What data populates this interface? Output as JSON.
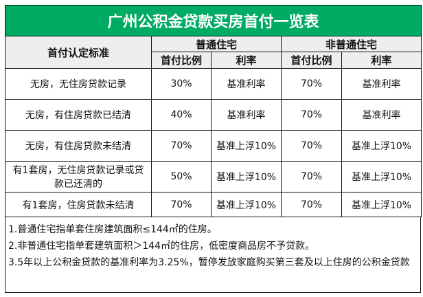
{
  "title": "广州公积金贷款买房首付一览表",
  "header": {
    "criteria": "首付认定标准",
    "ordinary": "普通住宅",
    "non_ordinary": "非普通住宅",
    "ratio": "首付比例",
    "rate": "利率"
  },
  "rows": [
    {
      "criteria": "无房，无住房贷款记录",
      "o_ratio": "30%",
      "o_rate": "基准利率",
      "n_ratio": "70%",
      "n_rate": "基准利率"
    },
    {
      "criteria": "无房，有住房贷款已结清",
      "o_ratio": "40%",
      "o_rate": "基准利率",
      "n_ratio": "70%",
      "n_rate": "基准利率"
    },
    {
      "criteria": "无房，有住房贷款未结清",
      "o_ratio": "70%",
      "o_rate": "基准上浮10%",
      "n_ratio": "70%",
      "n_rate": "基准上浮10%"
    },
    {
      "criteria": "有1套房，无住房贷款记录或贷款已还清的",
      "o_ratio": "50%",
      "o_rate": "基准上浮10%",
      "n_ratio": "70%",
      "n_rate": "基准上浮10%"
    },
    {
      "criteria": "有1套房，住房贷款未结清",
      "o_ratio": "70%",
      "o_rate": "基准上浮10%",
      "n_ratio": "70%",
      "n_rate": "基准上浮10%"
    }
  ],
  "notes": [
    "1.普通住宅指单套住房建筑面积≤144㎡的住房。",
    "2.非普通住宅指单套建筑面积＞144㎡的住房，低密度商品房不予贷款。",
    "3.5年以上公积金贷款的基准利率为3.25%，暂停发放家庭购买第三套及以上住房的公积金贷款"
  ],
  "colors": {
    "title_bg": "#00ab63",
    "header_bg": "#eeeeee"
  }
}
